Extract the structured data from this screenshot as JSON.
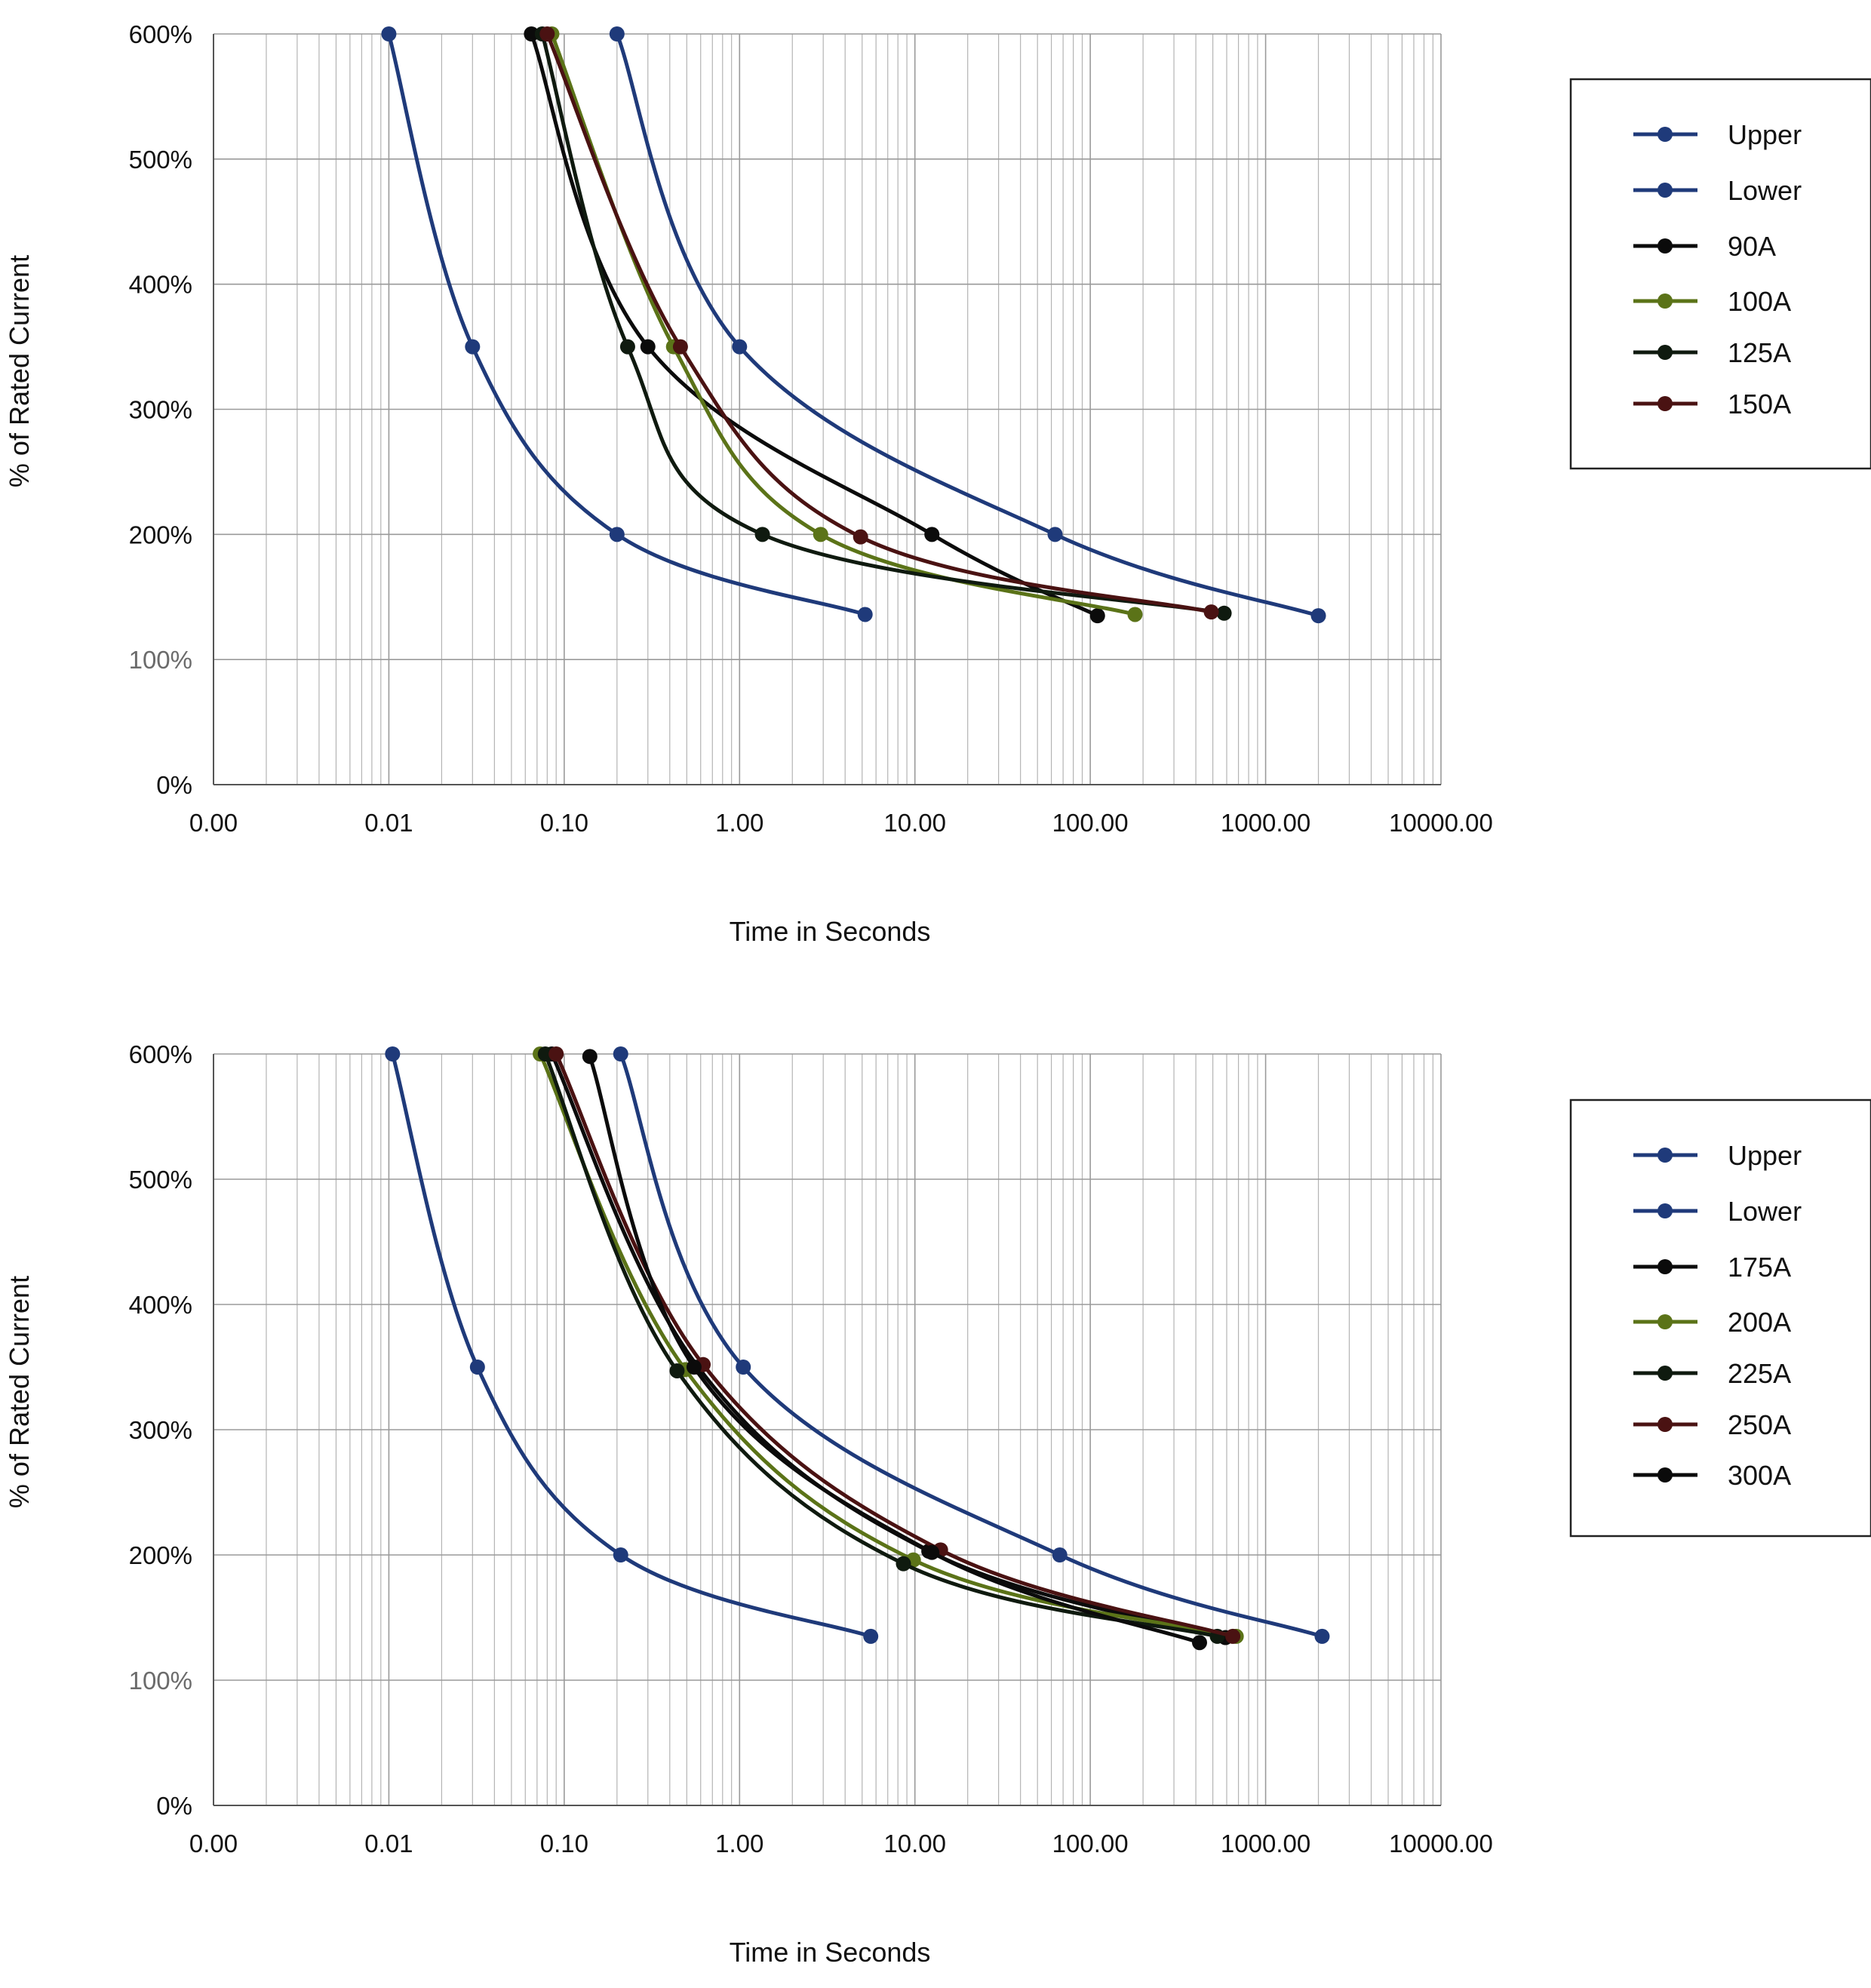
{
  "chart_data": [
    {
      "type": "line",
      "x_scale": "log",
      "xlabel": "Time in Seconds",
      "ylabel": "% of Rated Current",
      "xlim": [
        0.001,
        10000
      ],
      "ylim": [
        0,
        600
      ],
      "x_tick_labels": [
        "0.00",
        "0.01",
        "0.10",
        "1.00",
        "10.00",
        "100.00",
        "1000.00",
        "10000.00"
      ],
      "y_ticks": [
        {
          "value": 600,
          "label": "600%",
          "muted": false
        },
        {
          "value": 500,
          "label": "500%",
          "muted": false
        },
        {
          "value": 400,
          "label": "400%",
          "muted": false
        },
        {
          "value": 300,
          "label": "300%",
          "muted": false
        },
        {
          "value": 200,
          "label": "200%",
          "muted": false
        },
        {
          "value": 100,
          "label": "100%",
          "muted": true
        },
        {
          "value": 0,
          "label": "0%",
          "muted": false
        }
      ],
      "grid": true,
      "legend_position": "right",
      "series": [
        {
          "name": "Upper",
          "color": "#1f3a7a",
          "x": [
            0.2,
            1.0,
            63,
            2000
          ],
          "y": [
            600,
            350,
            200,
            135
          ]
        },
        {
          "name": "Lower",
          "color": "#1f3a7a",
          "x": [
            0.01,
            0.03,
            0.2,
            5.2
          ],
          "y": [
            600,
            350,
            200,
            136
          ]
        },
        {
          "name": "90A",
          "color": "#0b0b0b",
          "x": [
            0.065,
            0.3,
            12.5,
            110
          ],
          "y": [
            600,
            350,
            200,
            135
          ]
        },
        {
          "name": "100A",
          "color": "#5b7318",
          "x": [
            0.085,
            0.42,
            2.9,
            180
          ],
          "y": [
            600,
            350,
            200,
            136
          ]
        },
        {
          "name": "125A",
          "color": "#0f1a0f",
          "x": [
            0.075,
            0.23,
            1.35,
            580
          ],
          "y": [
            600,
            350,
            200,
            137
          ]
        },
        {
          "name": "150A",
          "color": "#4a1212",
          "x": [
            0.08,
            0.46,
            4.9,
            490
          ],
          "y": [
            600,
            350,
            198,
            138
          ]
        }
      ]
    },
    {
      "type": "line",
      "x_scale": "log",
      "xlabel": "Time in Seconds",
      "ylabel": "% of Rated Current",
      "xlim": [
        0.001,
        10000
      ],
      "ylim": [
        0,
        600
      ],
      "x_tick_labels": [
        "0.00",
        "0.01",
        "0.10",
        "1.00",
        "10.00",
        "100.00",
        "1000.00",
        "10000.00"
      ],
      "y_ticks": [
        {
          "value": 600,
          "label": "600%",
          "muted": false
        },
        {
          "value": 500,
          "label": "500%",
          "muted": false
        },
        {
          "value": 400,
          "label": "400%",
          "muted": false
        },
        {
          "value": 300,
          "label": "300%",
          "muted": false
        },
        {
          "value": 200,
          "label": "200%",
          "muted": false
        },
        {
          "value": 100,
          "label": "100%",
          "muted": true
        },
        {
          "value": 0,
          "label": "0%",
          "muted": false
        }
      ],
      "grid": true,
      "legend_position": "right",
      "series": [
        {
          "name": "Upper",
          "color": "#1f3a7a",
          "x": [
            0.21,
            1.05,
            67,
            2100
          ],
          "y": [
            600,
            350,
            200,
            135
          ]
        },
        {
          "name": "Lower",
          "color": "#1f3a7a",
          "x": [
            0.0105,
            0.032,
            0.21,
            5.6
          ],
          "y": [
            600,
            350,
            200,
            135
          ]
        },
        {
          "name": "175A",
          "color": "#0b0b0b",
          "x": [
            0.085,
            0.58,
            12,
            590
          ],
          "y": [
            600,
            350,
            203,
            134
          ]
        },
        {
          "name": "200A",
          "color": "#5b7318",
          "x": [
            0.073,
            0.49,
            9.8,
            680
          ],
          "y": [
            600,
            348,
            196,
            135
          ]
        },
        {
          "name": "225A",
          "color": "#0f1a0f",
          "x": [
            0.078,
            0.44,
            8.6,
            530
          ],
          "y": [
            600,
            347,
            193,
            135
          ]
        },
        {
          "name": "250A",
          "color": "#4a1212",
          "x": [
            0.09,
            0.62,
            14,
            650
          ],
          "y": [
            600,
            352,
            204,
            135
          ]
        },
        {
          "name": "300A",
          "color": "#0b0b0b",
          "x": [
            0.14,
            0.55,
            12.5,
            420
          ],
          "y": [
            598,
            350,
            202,
            130
          ]
        }
      ]
    }
  ]
}
